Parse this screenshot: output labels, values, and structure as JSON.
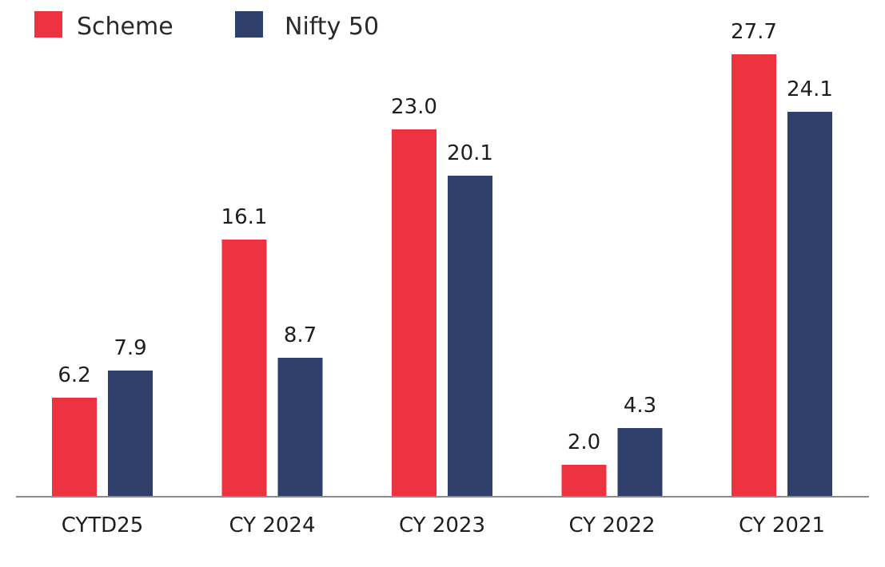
{
  "chart_data": {
    "type": "bar",
    "categories": [
      "CYTD25",
      "CY 2024",
      "CY 2023",
      "CY 2022",
      "CY 2021"
    ],
    "series": [
      {
        "name": "Scheme",
        "color": "#ee3340",
        "values": [
          6.2,
          16.1,
          23.0,
          2.0,
          27.7
        ]
      },
      {
        "name": "Nifty 50",
        "color": "#2f3f6b",
        "values": [
          7.9,
          8.7,
          20.1,
          4.3,
          24.1
        ]
      }
    ],
    "value_labels": [
      [
        "6.2",
        "16.1",
        "23.0",
        "2.0",
        "27.7"
      ],
      [
        "7.9",
        "8.7",
        "20.1",
        "4.3",
        "24.1"
      ]
    ],
    "title": "",
    "xlabel": "",
    "ylabel": "",
    "ylim": [
      0,
      30
    ],
    "grid": false,
    "legend": "top-left",
    "axis_color": "#8c8c8c"
  }
}
